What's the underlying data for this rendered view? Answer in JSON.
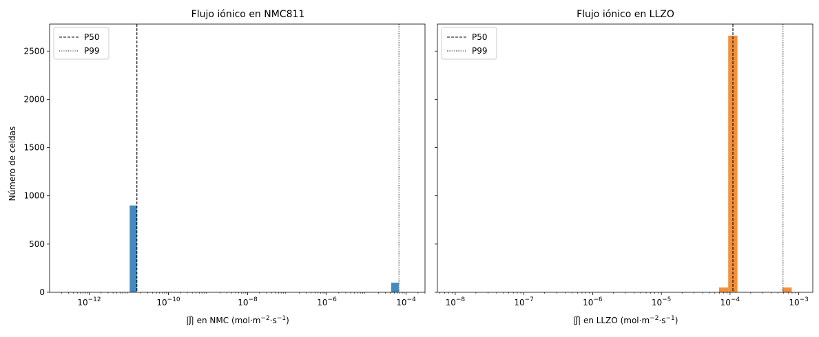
{
  "chart_data": [
    {
      "type": "bar",
      "title": "Flujo iónico en NMC811",
      "xlabel_main": "|J⃗| en NMC (mol·m",
      "xlabel_sup1": "−2",
      "xlabel_mid": "·s",
      "xlabel_sup2": "−1",
      "xlabel_end": ")",
      "ylabel": "Número de celdas",
      "xscale": "log",
      "xlim": [
        1e-13,
        0.0003
      ],
      "ylim": [
        0,
        2780
      ],
      "yticks": [
        "0",
        "500",
        "1000",
        "1500",
        "2000",
        "2500"
      ],
      "ytick_values": [
        0,
        500,
        1000,
        1500,
        2000,
        2500
      ],
      "xticks": [
        {
          "base": "10",
          "exp": "−12",
          "value": 1e-12
        },
        {
          "base": "10",
          "exp": "−10",
          "value": 1e-10
        },
        {
          "base": "10",
          "exp": "−8",
          "value": 1e-08
        },
        {
          "base": "10",
          "exp": "−6",
          "value": 1e-06
        },
        {
          "base": "10",
          "exp": "−4",
          "value": 0.0001
        }
      ],
      "bars": [
        {
          "x0": 1.05e-11,
          "x1": 1.6e-11,
          "value": 900
        },
        {
          "x0": 4.2e-05,
          "x1": 6.5e-05,
          "value": 100
        }
      ],
      "bar_color": "#3a84bd",
      "vlines": [
        {
          "name": "P50",
          "value": 1.6e-11,
          "style": "dashed"
        },
        {
          "name": "P99",
          "value": 6.6e-05,
          "style": "dotted"
        }
      ],
      "legend": [
        "P50",
        "P99"
      ],
      "legend_position": "top-left"
    },
    {
      "type": "bar",
      "title": "Flujo iónico en LLZO",
      "xlabel_main": "|J⃗| en LLZO (mol·m",
      "xlabel_sup1": "−2",
      "xlabel_mid": "·s",
      "xlabel_sup2": "−1",
      "xlabel_end": ")",
      "xscale": "log",
      "xlim": [
        5.5e-09,
        0.0016
      ],
      "ylim": [
        0,
        2780
      ],
      "xticks": [
        {
          "base": "10",
          "exp": "−8",
          "value": 1e-08
        },
        {
          "base": "10",
          "exp": "−7",
          "value": 1e-07
        },
        {
          "base": "10",
          "exp": "−6",
          "value": 1e-06
        },
        {
          "base": "10",
          "exp": "−5",
          "value": 1e-05
        },
        {
          "base": "10",
          "exp": "−4",
          "value": 0.0001
        },
        {
          "base": "10",
          "exp": "−3",
          "value": 0.001
        }
      ],
      "bars": [
        {
          "x0": 6.9e-05,
          "x1": 9.4e-05,
          "value": 50
        },
        {
          "x0": 9.4e-05,
          "x1": 0.000128,
          "value": 2660
        },
        {
          "x0": 0.00058,
          "x1": 0.00079,
          "value": 50
        }
      ],
      "bar_color": "#f28a30",
      "vlines": [
        {
          "name": "P50",
          "value": 0.00011,
          "style": "dashed"
        },
        {
          "name": "P99",
          "value": 0.00059,
          "style": "dotted"
        }
      ],
      "legend": [
        "P50",
        "P99"
      ],
      "legend_position": "top-left"
    }
  ]
}
